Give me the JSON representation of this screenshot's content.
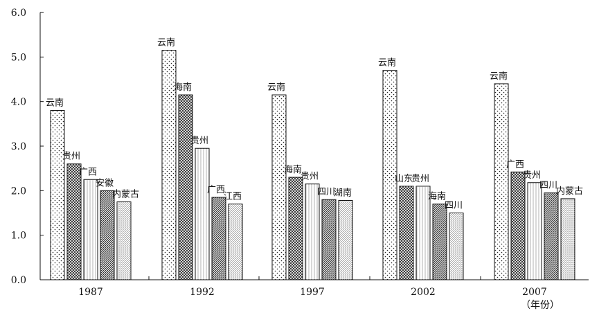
{
  "chart_data": {
    "type": "bar",
    "title": "",
    "xlabel": "（年份）",
    "ylabel": "",
    "ylim": [
      0,
      6
    ],
    "yticks": [
      "0.0",
      "1.0",
      "2.0",
      "3.0",
      "4.0",
      "5.0",
      "6.0"
    ],
    "grid": false,
    "legend": "none",
    "groups": [
      {
        "category": "1987",
        "bars": [
          {
            "label": "云南",
            "value": 3.8
          },
          {
            "label": "贵州",
            "value": 2.6
          },
          {
            "label": "广西",
            "value": 2.25
          },
          {
            "label": "安徽",
            "value": 2.0
          },
          {
            "label": "内蒙古",
            "value": 1.75
          }
        ]
      },
      {
        "category": "1992",
        "bars": [
          {
            "label": "云南",
            "value": 5.15
          },
          {
            "label": "海南",
            "value": 4.15
          },
          {
            "label": "贵州",
            "value": 2.95
          },
          {
            "label": "广西",
            "value": 1.85
          },
          {
            "label": "江西",
            "value": 1.7
          }
        ]
      },
      {
        "category": "1997",
        "bars": [
          {
            "label": "云南",
            "value": 4.15
          },
          {
            "label": "海南",
            "value": 2.3
          },
          {
            "label": "贵州",
            "value": 2.15
          },
          {
            "label": "四川",
            "value": 1.8
          },
          {
            "label": "湖南",
            "value": 1.78
          }
        ]
      },
      {
        "category": "2002",
        "bars": [
          {
            "label": "云南",
            "value": 4.7
          },
          {
            "label": "山东",
            "value": 2.1
          },
          {
            "label": "贵州",
            "value": 2.1
          },
          {
            "label": "海南",
            "value": 1.7
          },
          {
            "label": "四川",
            "value": 1.5
          }
        ]
      },
      {
        "category": "2007",
        "bars": [
          {
            "label": "云南",
            "value": 4.4
          },
          {
            "label": "广西",
            "value": 2.42
          },
          {
            "label": "贵州",
            "value": 2.18
          },
          {
            "label": "四川",
            "value": 1.95
          },
          {
            "label": "内蒙古",
            "value": 1.82
          }
        ]
      }
    ]
  }
}
